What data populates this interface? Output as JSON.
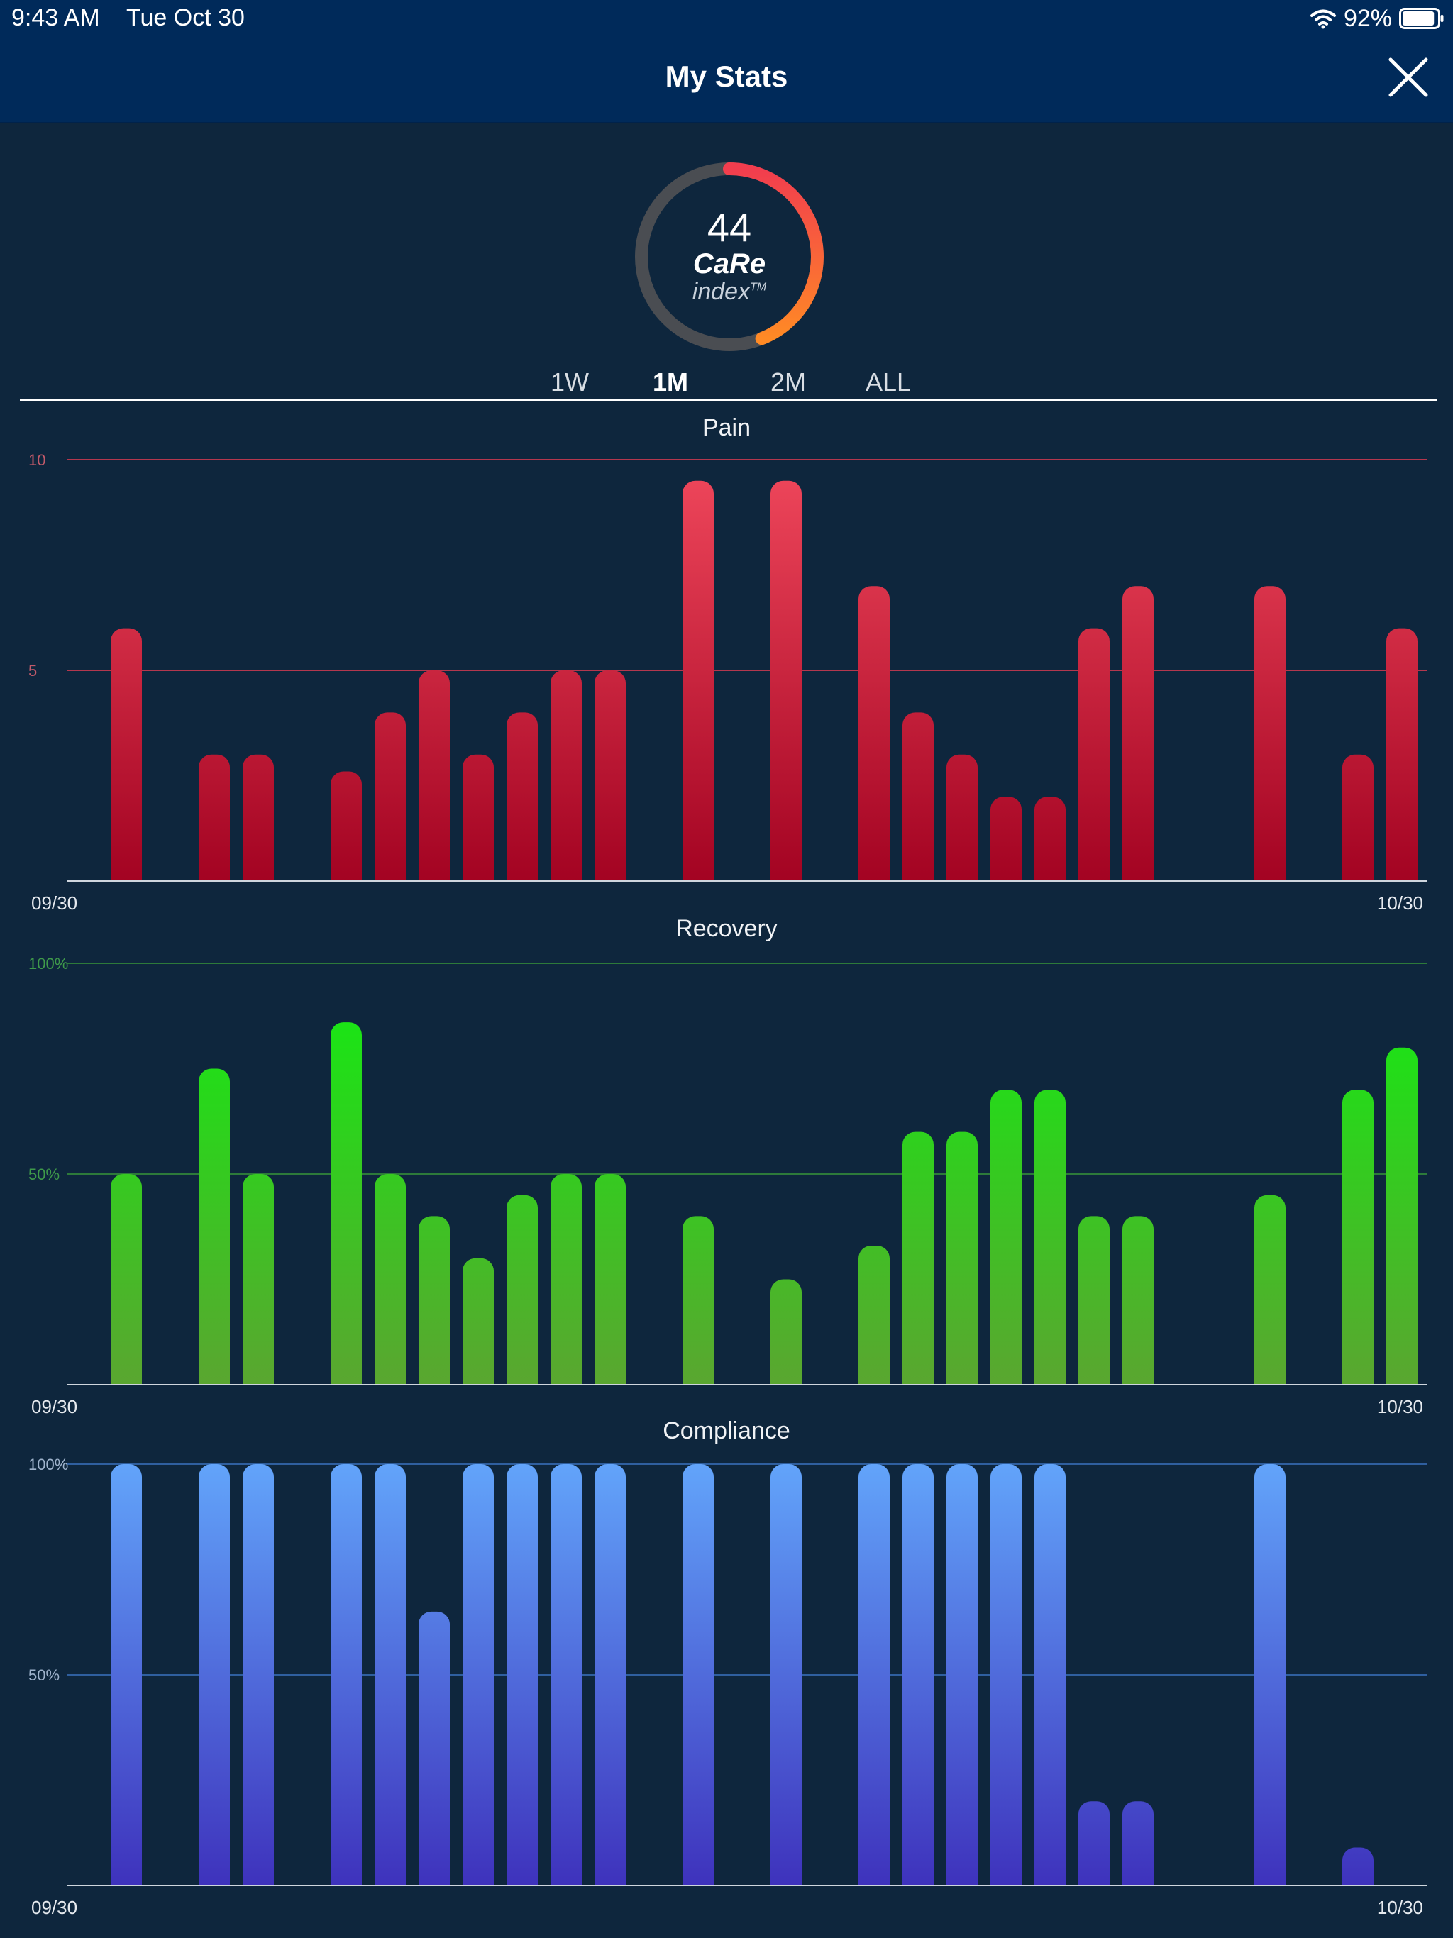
{
  "status_bar": {
    "time": "9:43 AM",
    "date": "Tue Oct 30",
    "battery": "92%",
    "battery_level": 0.92
  },
  "nav": {
    "title": "My Stats"
  },
  "gauge": {
    "value": "44",
    "label": "CaRe",
    "sublabel": "index",
    "trademark": "TM",
    "fraction": 0.44
  },
  "tabs": [
    {
      "label": "1W",
      "active": false
    },
    {
      "label": "1M",
      "active": true
    },
    {
      "label": "2M",
      "active": false
    },
    {
      "label": "ALL",
      "active": false
    }
  ],
  "chart_data": [
    {
      "type": "bar",
      "title": "Pain",
      "x_start": "09/30",
      "x_end": "10/30",
      "ylim": [
        0,
        10
      ],
      "yticks": [
        "10",
        "5"
      ],
      "colors": {
        "top": "#f0485c",
        "bottom": "#a30322",
        "grid": "#b4374e",
        "tick": "#c25a6a"
      },
      "values": [
        6,
        null,
        3,
        3,
        null,
        2.6,
        4,
        5,
        3,
        4,
        5,
        5,
        null,
        9.5,
        null,
        9.5,
        null,
        7,
        4,
        3,
        2,
        2,
        6,
        7,
        null,
        null,
        7,
        null,
        3,
        6
      ]
    },
    {
      "type": "bar",
      "title": "Recovery",
      "x_start": "09/30",
      "x_end": "10/30",
      "ylim": [
        0,
        100
      ],
      "yticks": [
        "100%",
        "50%"
      ],
      "colors": {
        "top": "#11ee11",
        "bottom": "#5aa630",
        "grid": "#2d7a3a",
        "tick": "#3f9a4a"
      },
      "values": [
        50,
        null,
        75,
        50,
        null,
        86,
        50,
        40,
        30,
        45,
        50,
        50,
        null,
        40,
        null,
        25,
        null,
        33,
        60,
        60,
        70,
        70,
        40,
        40,
        null,
        null,
        45,
        null,
        70,
        80
      ]
    },
    {
      "type": "bar",
      "title": "Compliance",
      "x_start": "09/30",
      "x_end": "10/30",
      "ylim": [
        0,
        100
      ],
      "yticks": [
        "100%",
        "50%"
      ],
      "colors": {
        "top": "#62a4fa",
        "bottom": "#3e32bc",
        "grid": "#2f5f9f",
        "tick": "#9fb3cc"
      },
      "values": [
        100,
        null,
        100,
        100,
        null,
        100,
        100,
        65,
        100,
        100,
        100,
        100,
        null,
        100,
        null,
        100,
        null,
        100,
        100,
        100,
        100,
        100,
        20,
        20,
        null,
        null,
        100,
        null,
        9,
        null
      ]
    }
  ]
}
